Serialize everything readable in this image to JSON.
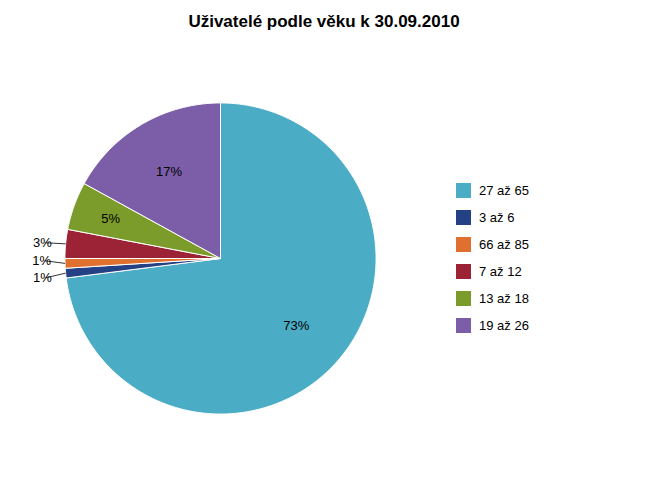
{
  "chart_data": {
    "type": "pie",
    "title": "Uživatelé podle věku k 30.09.2010",
    "categories": [
      "27 až 65",
      "3 až 6",
      "66 až 85",
      "7 až 12",
      "13 až 18",
      "19 až 26"
    ],
    "values": [
      73,
      1,
      1,
      3,
      5,
      17
    ],
    "colors": [
      "#4BACC6",
      "#244185",
      "#E07030",
      "#9B2335",
      "#7B9B2A",
      "#7B5EA7"
    ],
    "data_labels": true,
    "value_labels": [
      "73%",
      "1%",
      "1%",
      "3%",
      "5%",
      "17%"
    ],
    "legend": "right"
  }
}
